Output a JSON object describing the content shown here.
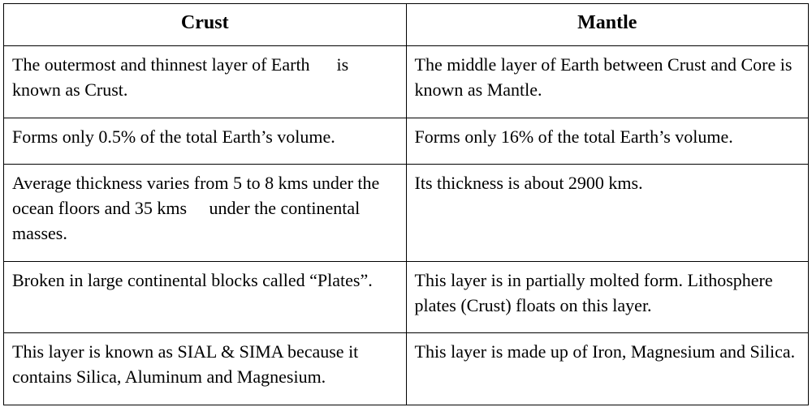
{
  "table": {
    "type": "table",
    "columns": [
      "Crust",
      "Mantle"
    ],
    "rows": [
      [
        "The outermost and thinnest layer of Earth      is known as Crust.",
        "The middle layer of Earth between Crust and Core is known as Mantle."
      ],
      [
        "Forms only 0.5% of the total Earth’s volume.",
        "Forms only 16% of the total Earth’s volume."
      ],
      [
        "Average thickness varies from 5 to 8 kms under the ocean floors and 35 kms     under the continental masses.",
        "Its thickness is about 2900 kms."
      ],
      [
        "Broken in large continental blocks called “Plates”.",
        "This layer is in partially molted form. Lithosphere plates (Crust) floats on this layer."
      ],
      [
        "This layer is known as SIAL & SIMA because it contains Silica, Aluminum and Magnesium.",
        "This layer is made up of Iron, Magnesium and Silica."
      ]
    ],
    "header_fontsize": 24,
    "cell_fontsize": 22,
    "border_color": "#000000",
    "background_color": "#ffffff",
    "text_color": "#000000",
    "column_width_pct": [
      50,
      50
    ]
  }
}
